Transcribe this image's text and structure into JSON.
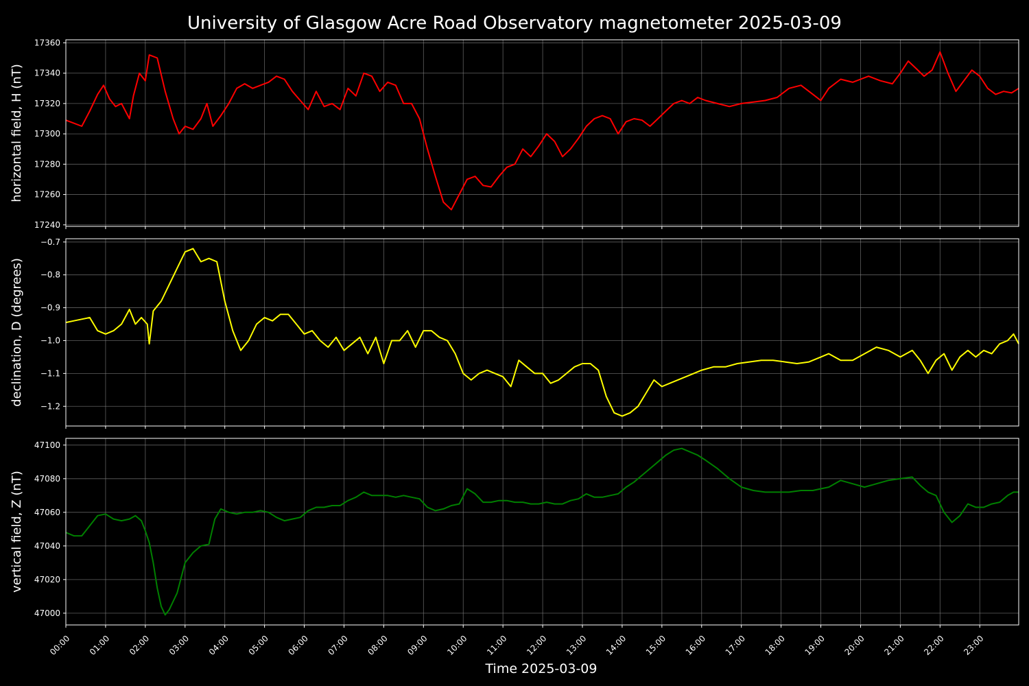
{
  "title": "University of Glasgow Acre Road Observatory magnetometer 2025-03-09",
  "xlabel": "Time 2025-03-09",
  "background_color": "#000000",
  "grid_color": "#808080",
  "chart_data": {
    "type": "line",
    "grid": true,
    "x_unit": "hours since 2025-03-09 00:00",
    "x_range": [
      0,
      23.98
    ],
    "x_ticks": [
      "00:00",
      "01:00",
      "02:00",
      "03:00",
      "04:00",
      "05:00",
      "06:00",
      "07:00",
      "08:00",
      "09:00",
      "10:00",
      "11:00",
      "12:00",
      "13:00",
      "14:00",
      "15:00",
      "16:00",
      "17:00",
      "18:00",
      "19:00",
      "20:00",
      "21:00",
      "22:00",
      "23:00"
    ],
    "panels": [
      {
        "name": "H",
        "ylabel": "horizontal field, H (nT)",
        "color": "#ff0000",
        "ylim": [
          17239,
          17362
        ],
        "yticks": [
          17240,
          17260,
          17280,
          17300,
          17320,
          17340,
          17360
        ],
        "x": [
          0,
          0.2,
          0.4,
          0.6,
          0.8,
          0.95,
          1.1,
          1.25,
          1.4,
          1.6,
          1.7,
          1.85,
          2.0,
          2.1,
          2.3,
          2.5,
          2.7,
          2.85,
          3.0,
          3.2,
          3.4,
          3.55,
          3.7,
          3.9,
          4.1,
          4.3,
          4.5,
          4.7,
          4.9,
          5.1,
          5.3,
          5.5,
          5.7,
          5.9,
          6.1,
          6.3,
          6.5,
          6.7,
          6.9,
          7.1,
          7.3,
          7.5,
          7.7,
          7.9,
          8.1,
          8.3,
          8.5,
          8.7,
          8.9,
          9.1,
          9.3,
          9.5,
          9.7,
          9.9,
          10.1,
          10.3,
          10.5,
          10.7,
          10.9,
          11.1,
          11.3,
          11.5,
          11.7,
          11.9,
          12.1,
          12.3,
          12.5,
          12.7,
          12.9,
          13.1,
          13.3,
          13.5,
          13.7,
          13.9,
          14.1,
          14.3,
          14.5,
          14.7,
          14.9,
          15.1,
          15.3,
          15.5,
          15.7,
          15.9,
          16.1,
          16.4,
          16.7,
          17.0,
          17.3,
          17.6,
          17.9,
          18.2,
          18.5,
          18.8,
          19.0,
          19.2,
          19.5,
          19.8,
          20.0,
          20.2,
          20.5,
          20.8,
          21.0,
          21.2,
          21.4,
          21.6,
          21.8,
          22.0,
          22.2,
          22.4,
          22.6,
          22.8,
          23.0,
          23.2,
          23.4,
          23.6,
          23.8,
          23.98
        ],
        "values": [
          17309,
          17307,
          17305,
          17315,
          17326,
          17332,
          17323,
          17318,
          17320,
          17310,
          17325,
          17340,
          17335,
          17352,
          17350,
          17328,
          17310,
          17300,
          17305,
          17303,
          17310,
          17320,
          17305,
          17312,
          17320,
          17330,
          17333,
          17330,
          17332,
          17334,
          17338,
          17336,
          17328,
          17322,
          17316,
          17328,
          17318,
          17320,
          17316,
          17330,
          17325,
          17340,
          17338,
          17328,
          17334,
          17332,
          17320,
          17320,
          17310,
          17290,
          17272,
          17255,
          17250,
          17260,
          17270,
          17272,
          17266,
          17265,
          17272,
          17278,
          17280,
          17290,
          17285,
          17292,
          17300,
          17295,
          17285,
          17290,
          17297,
          17305,
          17310,
          17312,
          17310,
          17300,
          17308,
          17310,
          17309,
          17305,
          17310,
          17315,
          17320,
          17322,
          17320,
          17324,
          17322,
          17320,
          17318,
          17320,
          17321,
          17322,
          17324,
          17330,
          17332,
          17326,
          17322,
          17330,
          17336,
          17334,
          17336,
          17338,
          17335,
          17333,
          17340,
          17348,
          17343,
          17338,
          17342,
          17354,
          17340,
          17328,
          17335,
          17342,
          17338,
          17330,
          17326,
          17328,
          17327,
          17330
        ]
      },
      {
        "name": "D",
        "ylabel": "declination, D (degrees)",
        "color": "#ffff00",
        "ylim": [
          -1.26,
          -0.69
        ],
        "yticks": [
          -1.2,
          -1.1,
          -1.0,
          -0.9,
          -0.8,
          -0.7
        ],
        "ytick_labels": [
          "−1.2",
          "−1.1",
          "−1.0",
          "−0.9",
          "−0.8",
          "−0.7"
        ],
        "x": [
          0,
          0.2,
          0.4,
          0.6,
          0.8,
          1.0,
          1.2,
          1.4,
          1.6,
          1.75,
          1.9,
          2.05,
          2.1,
          2.2,
          2.4,
          2.6,
          2.8,
          3.0,
          3.2,
          3.4,
          3.6,
          3.8,
          4.0,
          4.2,
          4.4,
          4.6,
          4.8,
          5.0,
          5.2,
          5.4,
          5.6,
          5.8,
          6.0,
          6.2,
          6.4,
          6.6,
          6.8,
          7.0,
          7.2,
          7.4,
          7.6,
          7.8,
          8.0,
          8.2,
          8.4,
          8.6,
          8.8,
          9.0,
          9.2,
          9.4,
          9.6,
          9.8,
          10.0,
          10.2,
          10.4,
          10.6,
          10.8,
          11.0,
          11.2,
          11.4,
          11.6,
          11.8,
          12.0,
          12.2,
          12.4,
          12.6,
          12.8,
          13.0,
          13.2,
          13.4,
          13.6,
          13.8,
          14.0,
          14.2,
          14.4,
          14.6,
          14.8,
          15.0,
          15.2,
          15.4,
          15.6,
          15.8,
          16.0,
          16.3,
          16.6,
          16.9,
          17.2,
          17.5,
          17.8,
          18.1,
          18.4,
          18.7,
          19.0,
          19.2,
          19.5,
          19.8,
          20.1,
          20.4,
          20.7,
          21.0,
          21.3,
          21.5,
          21.7,
          21.9,
          22.1,
          22.3,
          22.5,
          22.7,
          22.9,
          23.1,
          23.3,
          23.5,
          23.7,
          23.85,
          23.98
        ],
        "values": [
          -0.945,
          -0.94,
          -0.935,
          -0.93,
          -0.97,
          -0.98,
          -0.97,
          -0.95,
          -0.905,
          -0.95,
          -0.93,
          -0.95,
          -1.01,
          -0.91,
          -0.88,
          -0.83,
          -0.78,
          -0.73,
          -0.72,
          -0.76,
          -0.75,
          -0.76,
          -0.88,
          -0.97,
          -1.03,
          -1.0,
          -0.95,
          -0.93,
          -0.94,
          -0.92,
          -0.92,
          -0.95,
          -0.98,
          -0.97,
          -1.0,
          -1.02,
          -0.99,
          -1.03,
          -1.01,
          -0.99,
          -1.04,
          -0.99,
          -1.07,
          -1.0,
          -1.0,
          -0.97,
          -1.02,
          -0.97,
          -0.97,
          -0.99,
          -1.0,
          -1.04,
          -1.1,
          -1.12,
          -1.1,
          -1.09,
          -1.1,
          -1.11,
          -1.14,
          -1.06,
          -1.08,
          -1.1,
          -1.1,
          -1.13,
          -1.12,
          -1.1,
          -1.08,
          -1.07,
          -1.07,
          -1.09,
          -1.17,
          -1.22,
          -1.23,
          -1.22,
          -1.2,
          -1.16,
          -1.12,
          -1.14,
          -1.13,
          -1.12,
          -1.11,
          -1.1,
          -1.09,
          -1.08,
          -1.08,
          -1.07,
          -1.065,
          -1.06,
          -1.06,
          -1.065,
          -1.07,
          -1.065,
          -1.05,
          -1.04,
          -1.06,
          -1.06,
          -1.04,
          -1.02,
          -1.03,
          -1.05,
          -1.03,
          -1.06,
          -1.1,
          -1.06,
          -1.04,
          -1.09,
          -1.05,
          -1.03,
          -1.05,
          -1.03,
          -1.04,
          -1.01,
          -1.0,
          -0.98,
          -1.01
        ]
      },
      {
        "name": "Z",
        "ylabel": "vertical field, Z (nT)",
        "color": "#008000",
        "ylim": [
          46993,
          47104
        ],
        "yticks": [
          47000,
          47020,
          47040,
          47060,
          47080,
          47100
        ],
        "x": [
          0,
          0.2,
          0.4,
          0.6,
          0.8,
          1.0,
          1.2,
          1.4,
          1.6,
          1.75,
          1.9,
          2.0,
          2.1,
          2.2,
          2.3,
          2.4,
          2.5,
          2.6,
          2.8,
          3.0,
          3.2,
          3.4,
          3.6,
          3.75,
          3.9,
          4.1,
          4.3,
          4.5,
          4.7,
          4.9,
          5.1,
          5.3,
          5.5,
          5.7,
          5.9,
          6.1,
          6.3,
          6.5,
          6.7,
          6.9,
          7.1,
          7.3,
          7.5,
          7.7,
          7.9,
          8.1,
          8.3,
          8.5,
          8.7,
          8.9,
          9.1,
          9.3,
          9.5,
          9.7,
          9.9,
          10.1,
          10.3,
          10.5,
          10.7,
          10.9,
          11.1,
          11.3,
          11.5,
          11.7,
          11.9,
          12.1,
          12.3,
          12.5,
          12.7,
          12.9,
          13.1,
          13.3,
          13.5,
          13.7,
          13.9,
          14.1,
          14.3,
          14.5,
          14.7,
          14.9,
          15.1,
          15.3,
          15.5,
          15.7,
          15.9,
          16.1,
          16.4,
          16.7,
          17.0,
          17.3,
          17.6,
          17.9,
          18.2,
          18.5,
          18.8,
          19.0,
          19.2,
          19.5,
          19.8,
          20.1,
          20.4,
          20.7,
          21.0,
          21.3,
          21.5,
          21.7,
          21.9,
          22.1,
          22.3,
          22.5,
          22.7,
          22.9,
          23.1,
          23.3,
          23.5,
          23.7,
          23.85,
          23.98
        ],
        "values": [
          47048,
          47046,
          47046,
          47052,
          47058,
          47059,
          47056,
          47055,
          47056,
          47058,
          47055,
          47049,
          47042,
          47030,
          47015,
          47004,
          46999,
          47002,
          47012,
          47030,
          47036,
          47040,
          47041,
          47056,
          47062,
          47060,
          47059,
          47060,
          47060,
          47061,
          47060,
          47057,
          47055,
          47056,
          47057,
          47061,
          47063,
          47063,
          47064,
          47064,
          47067,
          47069,
          47072,
          47070,
          47070,
          47070,
          47069,
          47070,
          47069,
          47068,
          47063,
          47061,
          47062,
          47064,
          47065,
          47074,
          47071,
          47066,
          47066,
          47067,
          47067,
          47066,
          47066,
          47065,
          47065,
          47066,
          47065,
          47065,
          47067,
          47068,
          47071,
          47069,
          47069,
          47070,
          47071,
          47075,
          47078,
          47082,
          47086,
          47090,
          47094,
          47097,
          47098,
          47096,
          47094,
          47091,
          47086,
          47080,
          47075,
          47073,
          47072,
          47072,
          47072,
          47073,
          47073,
          47074,
          47075,
          47079,
          47077,
          47075,
          47077,
          47079,
          47080,
          47081,
          47076,
          47072,
          47070,
          47060,
          47054,
          47058,
          47065,
          47063,
          47063,
          47065,
          47066,
          47070,
          47072,
          47072
        ]
      }
    ]
  }
}
